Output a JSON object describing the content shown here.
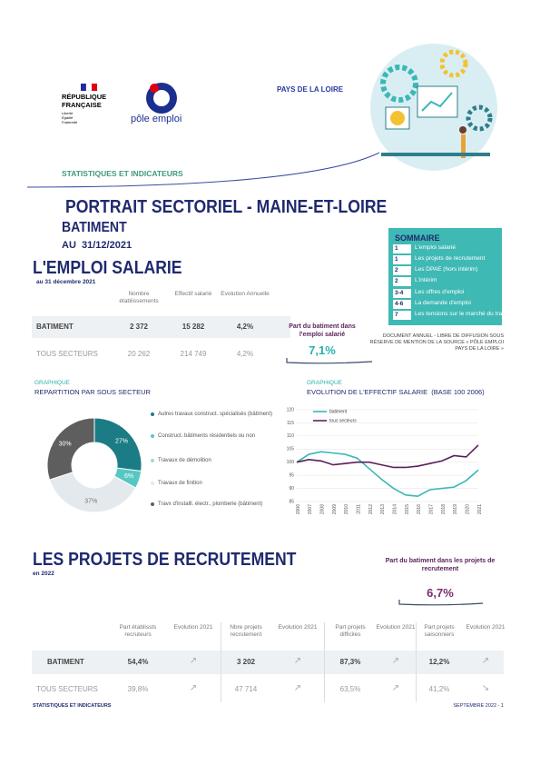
{
  "header": {
    "republique": [
      "RÉPUBLIQUE",
      "FRANÇAISE"
    ],
    "motto": [
      "Liberté",
      "Égalité",
      "Fraternité"
    ],
    "brand": "pôle emploi",
    "region": "PAYS DE LA LOIRE",
    "kicker": "STATISTIQUES ET INDICATEURS"
  },
  "title": {
    "main": "PORTRAIT SECTORIEL - MAINE-ET-LOIRE",
    "sector": "BATIMENT",
    "date_prefix": "AU",
    "date": "31/12/2021"
  },
  "sommaire": {
    "title": "SOMMAIRE",
    "items": [
      {
        "num": "1",
        "label": "L'emploi salarié"
      },
      {
        "num": "1",
        "label": "Les projets de recrutement"
      },
      {
        "num": "2",
        "label": "Les DPAE (hors intérim)"
      },
      {
        "num": "2",
        "label": "L'intérim"
      },
      {
        "num": "3-4",
        "label": "Les offres d'emploi"
      },
      {
        "num": "4-6",
        "label": "La demande d'emploi"
      },
      {
        "num": "7",
        "label": "Les tensions sur le marché du travail"
      }
    ]
  },
  "emploi": {
    "title": "L'EMPLOI SALARIE",
    "subtitle": "au 31 décembre 2021",
    "headers": [
      "Nombre établissements",
      "Effectif salarié",
      "Evolution Annuelle"
    ],
    "rows": [
      [
        "BATIMENT",
        "2 372",
        "15 282",
        "4,2%"
      ],
      [
        "TOUS SECTEURS",
        "20 262",
        "214 749",
        "4,2%"
      ]
    ],
    "part_label": "Part du batiment dans l'emploi salarié",
    "part_value": "7,1%"
  },
  "notice": "DOCUMENT ANNUEL - LIBRE DE DIFFUSION SOUS RÉSERVE DE MENTION DE LA SOURCE « PÔLE EMPLOI PAYS DE LA LOIRE »",
  "chart_data": [
    {
      "type": "pie",
      "kicker": "GRAPHIQUE",
      "title": "REPARTITION PAR SOUS SECTEUR",
      "categories": [
        "Autres travaux construct. spécialisés (bâtiment)",
        "Construct. bâtiments résidentiels ou non",
        "Travaux de démolition",
        "Travaux de finition",
        "Travx d'installl. électr., plomberie (bâtiment)"
      ],
      "values": [
        27,
        6,
        0,
        37,
        30
      ],
      "value_labels": [
        "27%",
        "6%",
        null,
        "37%",
        "30%"
      ],
      "colors": [
        "#1b7c85",
        "#56c7c3",
        "#9fd9d6",
        "#e4e9ed",
        "#5e5e5e"
      ]
    },
    {
      "type": "line",
      "kicker": "GRAPHIQUE",
      "title": "EVOLUTION DE L'EFFECTIF SALARIE  (BASE 100 2006)",
      "categories": [
        "2006",
        "2007",
        "2008",
        "2009",
        "2010",
        "2011",
        "2012",
        "2013",
        "2014",
        "2015",
        "2016",
        "2017",
        "2018",
        "2019",
        "2020",
        "2021"
      ],
      "ylim": [
        85,
        120
      ],
      "yticks": [
        85,
        90,
        95,
        100,
        105,
        110,
        115,
        120
      ],
      "grid": true,
      "series": [
        {
          "name": "batiment",
          "color": "#3bb8b5",
          "values": [
            100,
            103,
            104,
            103.5,
            103,
            101.5,
            97.5,
            93.5,
            90,
            87.5,
            87,
            89.5,
            90,
            90.5,
            93,
            97
          ]
        },
        {
          "name": "tous secteurs",
          "color": "#5b1f5a",
          "values": [
            100,
            101,
            100.5,
            99,
            99.5,
            100,
            100,
            99,
            98,
            98,
            98.5,
            99.5,
            100.5,
            102.5,
            102,
            106.5
          ]
        }
      ]
    }
  ],
  "recrutement": {
    "title": "LES PROJETS DE RECRUTEMENT",
    "subtitle": "en 2022",
    "part_label": "Part du batiment dans les projets de recrutement",
    "part_value": "6,7%",
    "headers": [
      "Part établissts recruteurs",
      "Evolution 2021",
      "Nbre projets recrutement",
      "Evolution 2021",
      "Part projets difficiles",
      "Evolution 2021",
      "Part projets saisonniers",
      "Evolution 2021"
    ],
    "rows": [
      [
        "BATIMENT",
        "54,4%",
        "↗",
        "3 202",
        "↗",
        "87,3%",
        "↗",
        "12,2%",
        "↗"
      ],
      [
        "TOUS SECTEURS",
        "39,8%",
        "↗",
        "47 714",
        "↗",
        "63,5%",
        "↗",
        "41,2%",
        "↘"
      ]
    ]
  },
  "footer": {
    "left": "STATISTIQUES ET INDICATEURS",
    "right": "SEPTEMBRE 2022 - 1"
  }
}
